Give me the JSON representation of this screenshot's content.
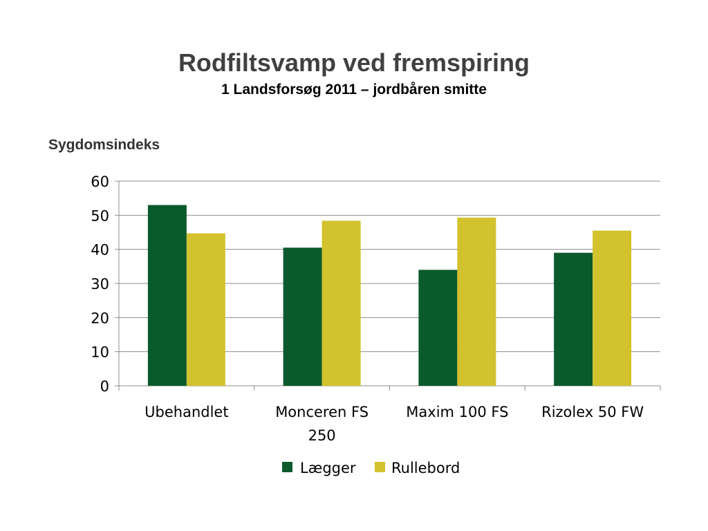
{
  "chart_data": {
    "type": "bar",
    "title": "Rodfiltsvamp ved fremspiring",
    "subtitle": "1 Landsforsøg 2011 – jordbåren smitte",
    "ylabel": "Sygdomsindeks",
    "xlabel": "",
    "categories": [
      [
        "Ubehandlet"
      ],
      [
        "Monceren FS",
        "250"
      ],
      [
        "Maxim 100 FS"
      ],
      [
        "Rizolex 50 FW"
      ]
    ],
    "series": [
      {
        "name": "Lægger",
        "color": "#0b5a2c",
        "values": [
          53,
          40.5,
          34,
          39
        ]
      },
      {
        "name": "Rullebord",
        "color": "#d2c22e",
        "values": [
          44.7,
          48.4,
          49.3,
          45.5
        ]
      }
    ],
    "ylim": [
      0,
      60
    ],
    "yticks": [
      "0",
      "10",
      "20",
      "30",
      "40",
      "50",
      "60"
    ],
    "grid": true,
    "legend_position": "bottom"
  }
}
